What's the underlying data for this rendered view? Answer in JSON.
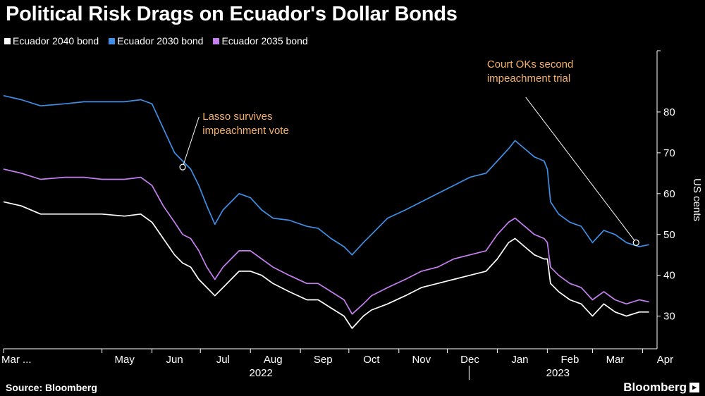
{
  "header": {
    "title": "Political Risk Drags on Ecuador's Dollar Bonds"
  },
  "footer": {
    "source": "Source: Bloomberg",
    "brand": "Bloomberg"
  },
  "colors": {
    "bond_2040": "#ffffff",
    "bond_2030": "#3f8fe6",
    "bond_2035": "#c57ff0",
    "annotation": "#f5b06a"
  },
  "chart_data": {
    "type": "line",
    "title": "Political Risk Drags on Ecuador's Dollar Bonds",
    "ylabel": "US cents",
    "ylim": [
      22,
      95
    ],
    "yticks": [
      30,
      40,
      50,
      60,
      70,
      80
    ],
    "xlim": [
      "2022-03-01",
      "2023-04-10"
    ],
    "legend_position": "top-left",
    "grid": false,
    "month_ticks": [
      {
        "date": "2022-03-01",
        "label": "Mar ..."
      },
      {
        "date": "2022-05-01",
        "label": "May"
      },
      {
        "date": "2022-06-01",
        "label": "Jun"
      },
      {
        "date": "2022-07-01",
        "label": "Jul"
      },
      {
        "date": "2022-08-01",
        "label": "Aug"
      },
      {
        "date": "2022-09-01",
        "label": "Sep"
      },
      {
        "date": "2022-10-01",
        "label": "Oct"
      },
      {
        "date": "2022-11-01",
        "label": "Nov"
      },
      {
        "date": "2022-12-01",
        "label": "Dec"
      },
      {
        "date": "2023-01-01",
        "label": "Jan"
      },
      {
        "date": "2023-02-01",
        "label": "Feb"
      },
      {
        "date": "2023-03-01",
        "label": "Mar"
      },
      {
        "date": "2023-04-01",
        "label": "Apr"
      }
    ],
    "year_labels": [
      {
        "date": "2022-08-01",
        "label": "2022"
      },
      {
        "date": "2023-02-01",
        "label": "2023"
      }
    ],
    "series": [
      {
        "name": "Ecuador 2030 bond",
        "color": "#3f8fe6",
        "points": [
          [
            "2022-03-01",
            84
          ],
          [
            "2022-03-12",
            83
          ],
          [
            "2022-03-24",
            81.5
          ],
          [
            "2022-04-08",
            82
          ],
          [
            "2022-04-20",
            82.5
          ],
          [
            "2022-05-01",
            82.5
          ],
          [
            "2022-05-15",
            82.5
          ],
          [
            "2022-05-25",
            83
          ],
          [
            "2022-06-01",
            82
          ],
          [
            "2022-06-08",
            76
          ],
          [
            "2022-06-15",
            70
          ],
          [
            "2022-06-20",
            68
          ],
          [
            "2022-06-25",
            66
          ],
          [
            "2022-06-30",
            62
          ],
          [
            "2022-07-05",
            57
          ],
          [
            "2022-07-10",
            52.5
          ],
          [
            "2022-07-15",
            56
          ],
          [
            "2022-07-25",
            60
          ],
          [
            "2022-08-01",
            59
          ],
          [
            "2022-08-08",
            56
          ],
          [
            "2022-08-15",
            54
          ],
          [
            "2022-08-25",
            53.5
          ],
          [
            "2022-09-05",
            52
          ],
          [
            "2022-09-12",
            51.5
          ],
          [
            "2022-09-20",
            49
          ],
          [
            "2022-09-28",
            47
          ],
          [
            "2022-10-03",
            45
          ],
          [
            "2022-10-10",
            48
          ],
          [
            "2022-10-15",
            50
          ],
          [
            "2022-10-25",
            54
          ],
          [
            "2022-11-05",
            56
          ],
          [
            "2022-11-15",
            58
          ],
          [
            "2022-11-25",
            60
          ],
          [
            "2022-12-05",
            62
          ],
          [
            "2022-12-15",
            64
          ],
          [
            "2022-12-25",
            65
          ],
          [
            "2023-01-01",
            68
          ],
          [
            "2023-01-08",
            71
          ],
          [
            "2023-01-12",
            73
          ],
          [
            "2023-01-18",
            71
          ],
          [
            "2023-01-24",
            69
          ],
          [
            "2023-01-30",
            68
          ],
          [
            "2023-02-01",
            66
          ],
          [
            "2023-02-03",
            58
          ],
          [
            "2023-02-08",
            55
          ],
          [
            "2023-02-15",
            53
          ],
          [
            "2023-02-22",
            52
          ],
          [
            "2023-03-01",
            48
          ],
          [
            "2023-03-08",
            51
          ],
          [
            "2023-03-15",
            50
          ],
          [
            "2023-03-22",
            48
          ],
          [
            "2023-03-30",
            47
          ],
          [
            "2023-04-05",
            47.5
          ]
        ]
      },
      {
        "name": "Ecuador 2035 bond",
        "color": "#c57ff0",
        "points": [
          [
            "2022-03-01",
            66
          ],
          [
            "2022-03-12",
            65
          ],
          [
            "2022-03-24",
            63.5
          ],
          [
            "2022-04-08",
            64
          ],
          [
            "2022-04-20",
            64
          ],
          [
            "2022-05-01",
            63.5
          ],
          [
            "2022-05-15",
            63.5
          ],
          [
            "2022-05-25",
            64
          ],
          [
            "2022-06-01",
            62
          ],
          [
            "2022-06-08",
            57
          ],
          [
            "2022-06-15",
            53
          ],
          [
            "2022-06-20",
            50
          ],
          [
            "2022-06-25",
            49
          ],
          [
            "2022-06-30",
            46
          ],
          [
            "2022-07-05",
            42
          ],
          [
            "2022-07-10",
            39
          ],
          [
            "2022-07-15",
            42
          ],
          [
            "2022-07-25",
            46
          ],
          [
            "2022-08-01",
            46
          ],
          [
            "2022-08-08",
            44
          ],
          [
            "2022-08-15",
            42
          ],
          [
            "2022-08-25",
            40
          ],
          [
            "2022-09-05",
            38
          ],
          [
            "2022-09-12",
            38
          ],
          [
            "2022-09-20",
            36
          ],
          [
            "2022-09-28",
            34
          ],
          [
            "2022-10-03",
            30.5
          ],
          [
            "2022-10-10",
            33
          ],
          [
            "2022-10-15",
            35
          ],
          [
            "2022-10-25",
            37
          ],
          [
            "2022-11-05",
            39
          ],
          [
            "2022-11-15",
            41
          ],
          [
            "2022-11-25",
            42
          ],
          [
            "2022-12-05",
            44
          ],
          [
            "2022-12-15",
            45
          ],
          [
            "2022-12-25",
            46
          ],
          [
            "2023-01-01",
            50
          ],
          [
            "2023-01-08",
            53
          ],
          [
            "2023-01-12",
            54
          ],
          [
            "2023-01-18",
            52
          ],
          [
            "2023-01-24",
            50
          ],
          [
            "2023-01-30",
            49
          ],
          [
            "2023-02-01",
            48
          ],
          [
            "2023-02-03",
            42
          ],
          [
            "2023-02-08",
            40
          ],
          [
            "2023-02-15",
            38
          ],
          [
            "2023-02-22",
            37
          ],
          [
            "2023-03-01",
            34
          ],
          [
            "2023-03-08",
            36
          ],
          [
            "2023-03-15",
            34
          ],
          [
            "2023-03-22",
            33
          ],
          [
            "2023-03-30",
            34
          ],
          [
            "2023-04-05",
            33.5
          ]
        ]
      },
      {
        "name": "Ecuador 2040 bond",
        "color": "#ffffff",
        "points": [
          [
            "2022-03-01",
            58
          ],
          [
            "2022-03-12",
            57
          ],
          [
            "2022-03-24",
            55
          ],
          [
            "2022-04-08",
            55
          ],
          [
            "2022-04-20",
            55
          ],
          [
            "2022-05-01",
            55
          ],
          [
            "2022-05-15",
            54.5
          ],
          [
            "2022-05-25",
            55
          ],
          [
            "2022-06-01",
            53
          ],
          [
            "2022-06-08",
            49
          ],
          [
            "2022-06-15",
            45
          ],
          [
            "2022-06-20",
            43
          ],
          [
            "2022-06-25",
            42
          ],
          [
            "2022-06-30",
            39
          ],
          [
            "2022-07-05",
            37
          ],
          [
            "2022-07-10",
            35
          ],
          [
            "2022-07-15",
            37
          ],
          [
            "2022-07-25",
            41
          ],
          [
            "2022-08-01",
            41
          ],
          [
            "2022-08-08",
            40
          ],
          [
            "2022-08-15",
            38
          ],
          [
            "2022-08-25",
            36
          ],
          [
            "2022-09-05",
            34
          ],
          [
            "2022-09-12",
            34
          ],
          [
            "2022-09-20",
            32
          ],
          [
            "2022-09-28",
            30
          ],
          [
            "2022-10-03",
            27
          ],
          [
            "2022-10-10",
            30
          ],
          [
            "2022-10-15",
            31.5
          ],
          [
            "2022-10-25",
            33
          ],
          [
            "2022-11-05",
            35
          ],
          [
            "2022-11-15",
            37
          ],
          [
            "2022-11-25",
            38
          ],
          [
            "2022-12-05",
            39
          ],
          [
            "2022-12-15",
            40
          ],
          [
            "2022-12-25",
            41
          ],
          [
            "2023-01-01",
            44
          ],
          [
            "2023-01-08",
            48
          ],
          [
            "2023-01-12",
            49
          ],
          [
            "2023-01-18",
            47
          ],
          [
            "2023-01-24",
            45
          ],
          [
            "2023-01-30",
            44
          ],
          [
            "2023-02-01",
            44
          ],
          [
            "2023-02-03",
            38
          ],
          [
            "2023-02-08",
            36
          ],
          [
            "2023-02-15",
            34
          ],
          [
            "2023-02-22",
            33
          ],
          [
            "2023-03-01",
            30
          ],
          [
            "2023-03-08",
            33
          ],
          [
            "2023-03-15",
            31
          ],
          [
            "2023-03-22",
            30
          ],
          [
            "2023-03-30",
            31
          ],
          [
            "2023-04-05",
            31
          ]
        ]
      }
    ],
    "annotations": [
      {
        "lines": [
          "Lasso survives",
          "impeachment vote"
        ],
        "date": "2022-06-20",
        "value": 66.5,
        "text_anchor_date": "2022-07-01",
        "text_anchor_value": 75
      },
      {
        "lines": [
          "Court OKs second",
          "impeachment trial"
        ],
        "date": "2023-03-28",
        "value": 48,
        "text_anchor_date": "2022-12-30",
        "text_anchor_value": 86
      }
    ]
  }
}
